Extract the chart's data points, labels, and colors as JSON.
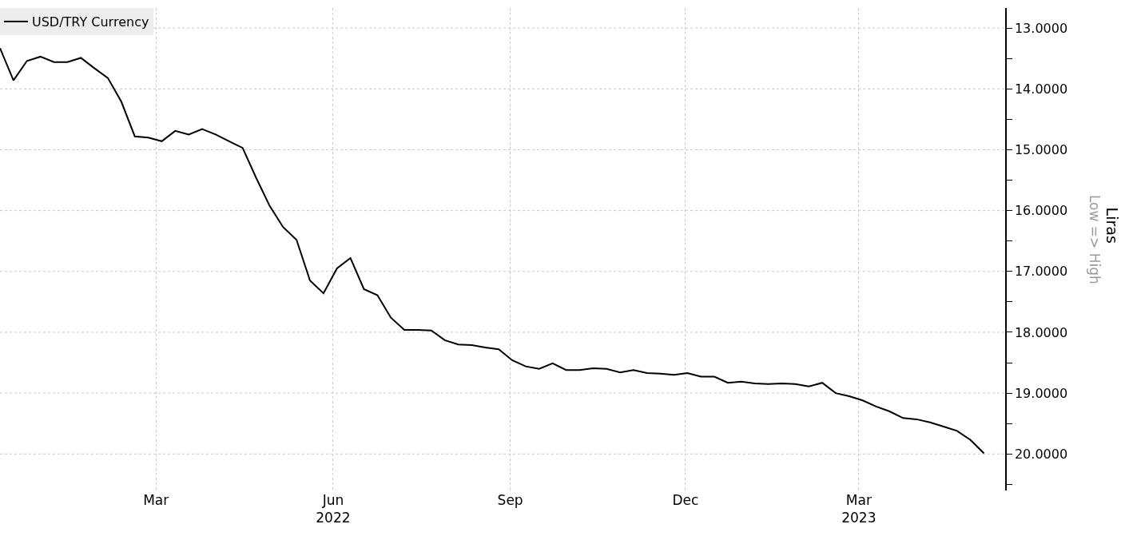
{
  "chart_data": {
    "type": "line",
    "ylabel": "Liras",
    "annotations": [
      "Low => High"
    ],
    "x": [
      "2021-12-10",
      "2021-12-17",
      "2021-12-24",
      "2021-12-31",
      "2022-01-07",
      "2022-01-14",
      "2022-01-21",
      "2022-01-28",
      "2022-02-04",
      "2022-02-11",
      "2022-02-18",
      "2022-02-25",
      "2022-03-04",
      "2022-03-11",
      "2022-03-18",
      "2022-03-25",
      "2022-04-01",
      "2022-04-08",
      "2022-04-15",
      "2022-04-22",
      "2022-04-29",
      "2022-05-06",
      "2022-05-13",
      "2022-05-20",
      "2022-05-27",
      "2022-06-03",
      "2022-06-10",
      "2022-06-17",
      "2022-06-24",
      "2022-07-01",
      "2022-07-08",
      "2022-07-15",
      "2022-07-22",
      "2022-07-29",
      "2022-08-05",
      "2022-08-12",
      "2022-08-19",
      "2022-08-26",
      "2022-09-02",
      "2022-09-09",
      "2022-09-16",
      "2022-09-23",
      "2022-09-30",
      "2022-10-07",
      "2022-10-14",
      "2022-10-21",
      "2022-10-28",
      "2022-11-04",
      "2022-11-11",
      "2022-11-18",
      "2022-11-25",
      "2022-12-02",
      "2022-12-09",
      "2022-12-16",
      "2022-12-23",
      "2022-12-30",
      "2023-01-06",
      "2023-01-13",
      "2023-01-20",
      "2023-01-27",
      "2023-02-03",
      "2023-02-10",
      "2023-02-17",
      "2023-02-24",
      "2023-03-03",
      "2023-03-10",
      "2023-03-17",
      "2023-03-24",
      "2023-03-31",
      "2023-04-07",
      "2023-04-14",
      "2023-04-21",
      "2023-04-28",
      "2023-05-05"
    ],
    "series": [
      {
        "name": "USD/TRY Currency",
        "color": "#000000",
        "values": [
          13.33,
          13.86,
          13.54,
          13.47,
          13.56,
          13.56,
          13.49,
          13.66,
          13.82,
          14.21,
          14.78,
          14.8,
          14.86,
          14.69,
          14.75,
          14.66,
          14.75,
          14.86,
          14.97,
          15.46,
          15.92,
          16.27,
          16.48,
          17.15,
          17.36,
          16.95,
          16.78,
          17.29,
          17.39,
          17.76,
          17.96,
          17.96,
          17.97,
          18.13,
          18.2,
          18.21,
          18.25,
          18.28,
          18.46,
          18.56,
          18.6,
          18.51,
          18.62,
          18.62,
          18.59,
          18.6,
          18.66,
          18.62,
          18.67,
          18.68,
          18.7,
          18.67,
          18.73,
          18.73,
          18.83,
          18.81,
          18.84,
          18.85,
          18.84,
          18.85,
          18.89,
          18.83,
          19.0,
          19.05,
          19.12,
          19.22,
          19.3,
          19.41,
          19.43,
          19.48,
          19.55,
          19.62,
          19.77,
          19.99
        ]
      }
    ],
    "xlim": [
      "2021-12-10",
      "2023-05-16"
    ],
    "xticks": [
      {
        "value": "2022-03-01",
        "label": "Mar"
      },
      {
        "value": "2022-06-01",
        "label": "Jun\n2022"
      },
      {
        "value": "2022-09-01",
        "label": "Sep"
      },
      {
        "value": "2022-12-01",
        "label": "Dec"
      },
      {
        "value": "2023-03-01",
        "label": "Mar\n2023"
      }
    ],
    "ylim": [
      20.6,
      12.67
    ],
    "yticks": [
      {
        "value": 13,
        "label": "13.0000"
      },
      {
        "value": 13.5,
        "label": null
      },
      {
        "value": 14,
        "label": "14.0000"
      },
      {
        "value": 14.5,
        "label": null
      },
      {
        "value": 15,
        "label": "15.0000"
      },
      {
        "value": 15.5,
        "label": null
      },
      {
        "value": 16,
        "label": "16.0000"
      },
      {
        "value": 16.5,
        "label": null
      },
      {
        "value": 17,
        "label": "17.0000"
      },
      {
        "value": 17.5,
        "label": null
      },
      {
        "value": 18,
        "label": "18.0000"
      },
      {
        "value": 18.5,
        "label": null
      },
      {
        "value": 19,
        "label": "19.0000"
      },
      {
        "value": 19.5,
        "label": null
      },
      {
        "value": 20,
        "label": "20.0000"
      },
      {
        "value": 20.5,
        "label": null
      }
    ],
    "grid": true,
    "legend": "top left",
    "marker": "none",
    "line_style": "solid"
  }
}
